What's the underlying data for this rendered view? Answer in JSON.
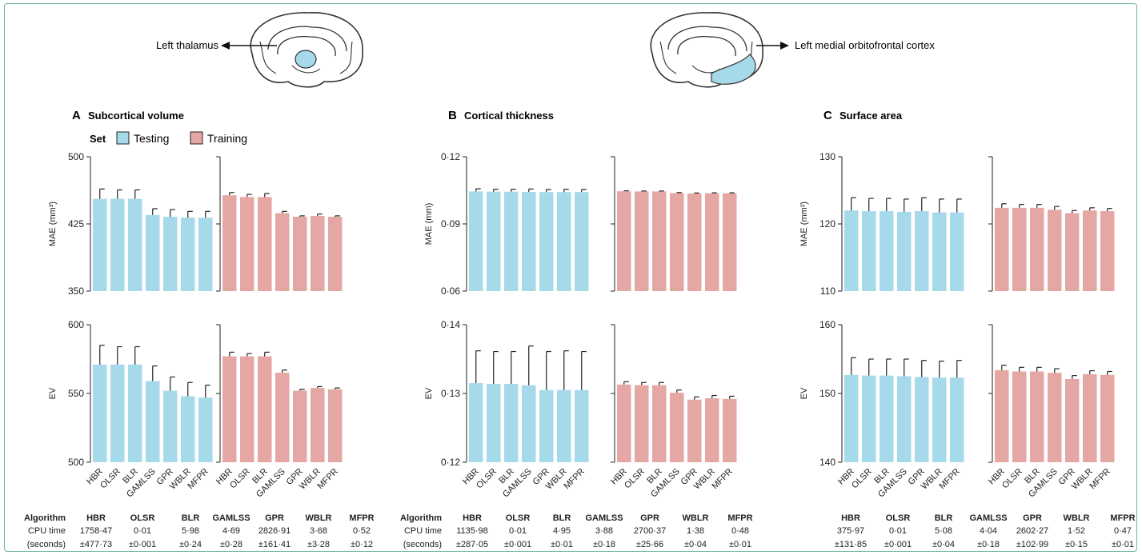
{
  "colors": {
    "testing": "#a6d9ea",
    "training": "#e4a7a3",
    "brain_highlight": "#a6d9ea",
    "frame": "#6fb3a6"
  },
  "annotations": {
    "left_region": "Left thalamus",
    "right_region": "Left medial orbitofrontal cortex"
  },
  "legend": {
    "title": "Set",
    "testing": "Testing",
    "training": "Training"
  },
  "algorithms": [
    "HBR",
    "OLSR",
    "BLR",
    "GAMLSS",
    "GPR",
    "WBLR",
    "MFPR"
  ],
  "chart_data": [
    {
      "type": "bar",
      "panel": "A",
      "title": "Subcortical volume",
      "categories": [
        "HBR",
        "OLSR",
        "BLR",
        "GAMLSS",
        "GPR",
        "WBLR",
        "MFPR"
      ],
      "rows": [
        {
          "ylabel": "MAE (mm³)",
          "ylim": [
            350,
            500
          ],
          "ticks": [
            "350",
            "425",
            "500"
          ],
          "series": [
            {
              "name": "Testing",
              "values": [
                453,
                453,
                453,
                435,
                433,
                432,
                432
              ],
              "errors": [
                11,
                10,
                10,
                7,
                8,
                7,
                7
              ]
            },
            {
              "name": "Training",
              "values": [
                457,
                455,
                455,
                437,
                433,
                434,
                433
              ],
              "errors": [
                3,
                3,
                4,
                2,
                1,
                2,
                1
              ]
            }
          ]
        },
        {
          "ylabel": "EV",
          "ylim": [
            500,
            600
          ],
          "ticks": [
            "500",
            "550",
            "600"
          ],
          "series": [
            {
              "name": "Testing",
              "values": [
                571,
                571,
                571,
                559,
                552,
                548,
                547
              ],
              "errors": [
                14,
                13,
                13,
                11,
                10,
                10,
                9
              ]
            },
            {
              "name": "Training",
              "values": [
                577,
                577,
                577,
                565,
                552,
                554,
                553
              ],
              "errors": [
                3,
                2,
                3,
                2,
                1,
                1,
                1
              ]
            }
          ]
        }
      ]
    },
    {
      "type": "bar",
      "panel": "B",
      "title": "Cortical thickness",
      "categories": [
        "HBR",
        "OLSR",
        "BLR",
        "GAMLSS",
        "GPR",
        "WBLR",
        "MFPR"
      ],
      "rows": [
        {
          "ylabel": "MAE (mm)",
          "ylim": [
            0.06,
            0.12
          ],
          "ticks": [
            "0·06",
            "0·09",
            "0·12"
          ],
          "series": [
            {
              "name": "Testing",
              "values": [
                0.1045,
                0.1044,
                0.1044,
                0.1043,
                0.1042,
                0.1042,
                0.1042
              ],
              "errors": [
                0.0012,
                0.0011,
                0.0011,
                0.0013,
                0.0012,
                0.0013,
                0.0012
              ]
            },
            {
              "name": "Training",
              "values": [
                0.1046,
                0.1045,
                0.1045,
                0.1038,
                0.1036,
                0.1037,
                0.1037
              ],
              "errors": [
                0.0002,
                0.0002,
                0.0002,
                0.0002,
                0.0002,
                0.0002,
                0.0002
              ]
            }
          ]
        },
        {
          "ylabel": "EV",
          "ylim": [
            0.12,
            0.14
          ],
          "ticks": [
            "0·12",
            "0·13",
            "0·14"
          ],
          "series": [
            {
              "name": "Testing",
              "values": [
                0.1315,
                0.1314,
                0.1314,
                0.1312,
                0.1305,
                0.1305,
                0.1305
              ],
              "errors": [
                0.0047,
                0.0047,
                0.0047,
                0.0057,
                0.0056,
                0.0057,
                0.0056
              ]
            },
            {
              "name": "Training",
              "values": [
                0.1313,
                0.1312,
                0.1312,
                0.1301,
                0.1291,
                0.1293,
                0.1292
              ],
              "errors": [
                0.0004,
                0.0004,
                0.0004,
                0.0004,
                0.0004,
                0.0004,
                0.0004
              ]
            }
          ]
        }
      ]
    },
    {
      "type": "bar",
      "panel": "C",
      "title": "Surface area",
      "categories": [
        "HBR",
        "OLSR",
        "BLR",
        "GAMLSS",
        "GPR",
        "WBLR",
        "MFPR"
      ],
      "rows": [
        {
          "ylabel": "MAE (mm²)",
          "ylim": [
            110,
            130
          ],
          "ticks": [
            "110",
            "120",
            "130"
          ],
          "series": [
            {
              "name": "Testing",
              "values": [
                122.0,
                121.9,
                121.9,
                121.8,
                121.9,
                121.7,
                121.7
              ],
              "errors": [
                1.9,
                1.9,
                1.9,
                1.9,
                2.0,
                2.0,
                2.0
              ]
            },
            {
              "name": "Training",
              "values": [
                122.4,
                122.4,
                122.4,
                122.1,
                121.6,
                122.0,
                121.9
              ],
              "errors": [
                0.6,
                0.5,
                0.5,
                0.5,
                0.4,
                0.4,
                0.4
              ]
            }
          ]
        },
        {
          "ylabel": "EV",
          "ylim": [
            140,
            160
          ],
          "ticks": [
            "140",
            "150",
            "160"
          ],
          "series": [
            {
              "name": "Testing",
              "values": [
                152.7,
                152.6,
                152.6,
                152.5,
                152.4,
                152.3,
                152.3
              ],
              "errors": [
                2.5,
                2.4,
                2.4,
                2.5,
                2.4,
                2.4,
                2.5
              ]
            },
            {
              "name": "Training",
              "values": [
                153.4,
                153.2,
                153.2,
                153.0,
                152.1,
                152.8,
                152.7
              ],
              "errors": [
                0.7,
                0.6,
                0.6,
                0.6,
                0.5,
                0.5,
                0.5
              ]
            }
          ]
        }
      ]
    }
  ],
  "cpu_tables": [
    {
      "header_label": "Algorithm",
      "row1_label": "CPU time",
      "row2_label": "(seconds)",
      "values": [
        "1758·47",
        "0·01",
        "5·98",
        "4·69",
        "2826·91",
        "3·68",
        "0·52"
      ],
      "errors": [
        "±477·73",
        "±0·001",
        "±0·24",
        "±0·28",
        "±161·41",
        "±3·28",
        "±0·12"
      ]
    },
    {
      "header_label": "Algorithm",
      "row1_label": "CPU time",
      "row2_label": "(seconds)",
      "values": [
        "1135·98",
        "0·01",
        "4·95",
        "3·88",
        "2700·37",
        "1·38",
        "0·48"
      ],
      "errors": [
        "±287·05",
        "±0·001",
        "±0·01",
        "±0·18",
        "±25·66",
        "±0·04",
        "±0·01"
      ]
    },
    {
      "header_label": "",
      "row1_label": "",
      "row2_label": "",
      "values": [
        "375·97",
        "0·01",
        "5·08",
        "4·04",
        "2602·27",
        "1·52",
        "0·47"
      ],
      "errors": [
        "±131·85",
        "±0·001",
        "±0·04",
        "±0·18",
        "±102·99",
        "±0·15",
        "±0·01"
      ]
    }
  ]
}
